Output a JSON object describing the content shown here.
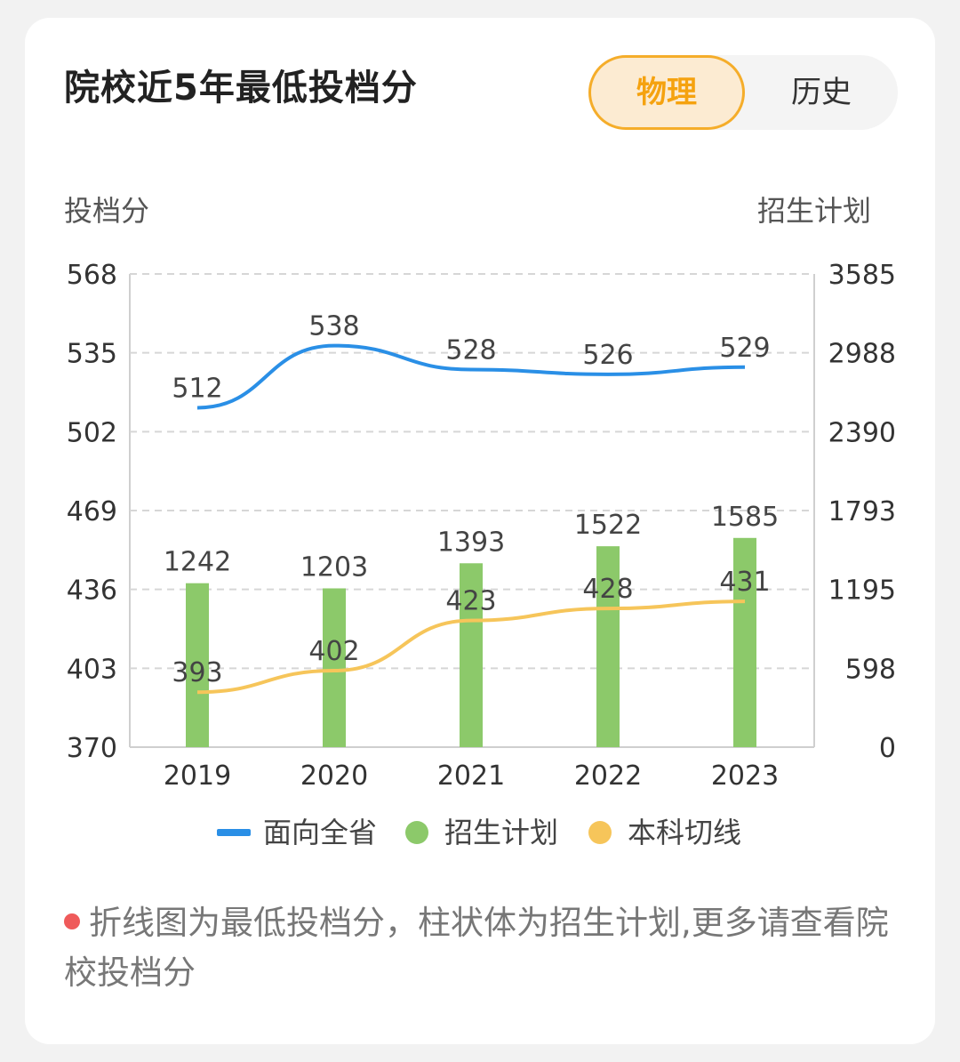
{
  "title": "院校近5年最低投档分",
  "toggle": {
    "options": [
      "物理",
      "历史"
    ],
    "selected": "物理"
  },
  "note": "折线图为最低投档分，柱状体为招生计划,更多请查看院校投档分",
  "colors": {
    "face_province": "#2a8fe6",
    "enrollment": "#8cc96a",
    "cutoff": "#f6c55a",
    "note_dot": "#ef5a5a",
    "accent": "#f5a20f"
  },
  "chart_data": {
    "type": "bar",
    "categories": [
      "2019",
      "2020",
      "2021",
      "2022",
      "2023"
    ],
    "ylabel": "投档分",
    "y2label": "招生计划",
    "yticks": [
      "568",
      "535",
      "502",
      "469",
      "436",
      "403",
      "370"
    ],
    "y2ticks": [
      "3585",
      "2988",
      "2390",
      "1793",
      "1195",
      "598",
      "0"
    ],
    "ylim": [
      370,
      568
    ],
    "y2lim": [
      0,
      3585
    ],
    "grid": true,
    "legend_position": "bottom",
    "series": [
      {
        "name": "面向全省",
        "type": "line",
        "axis": "left",
        "values": [
          512,
          538,
          528,
          526,
          529
        ],
        "labels": [
          "512",
          "538",
          "528",
          "526",
          "529"
        ]
      },
      {
        "name": "招生计划",
        "type": "bar",
        "axis": "right",
        "values": [
          1242,
          1203,
          1393,
          1522,
          1585
        ],
        "labels": [
          "1242",
          "1203",
          "1393",
          "1522",
          "1585"
        ]
      },
      {
        "name": "本科切线",
        "type": "line",
        "axis": "left",
        "values": [
          393,
          402,
          423,
          428,
          431
        ],
        "labels": [
          "393",
          "402",
          "423",
          "428",
          "431"
        ]
      }
    ]
  }
}
